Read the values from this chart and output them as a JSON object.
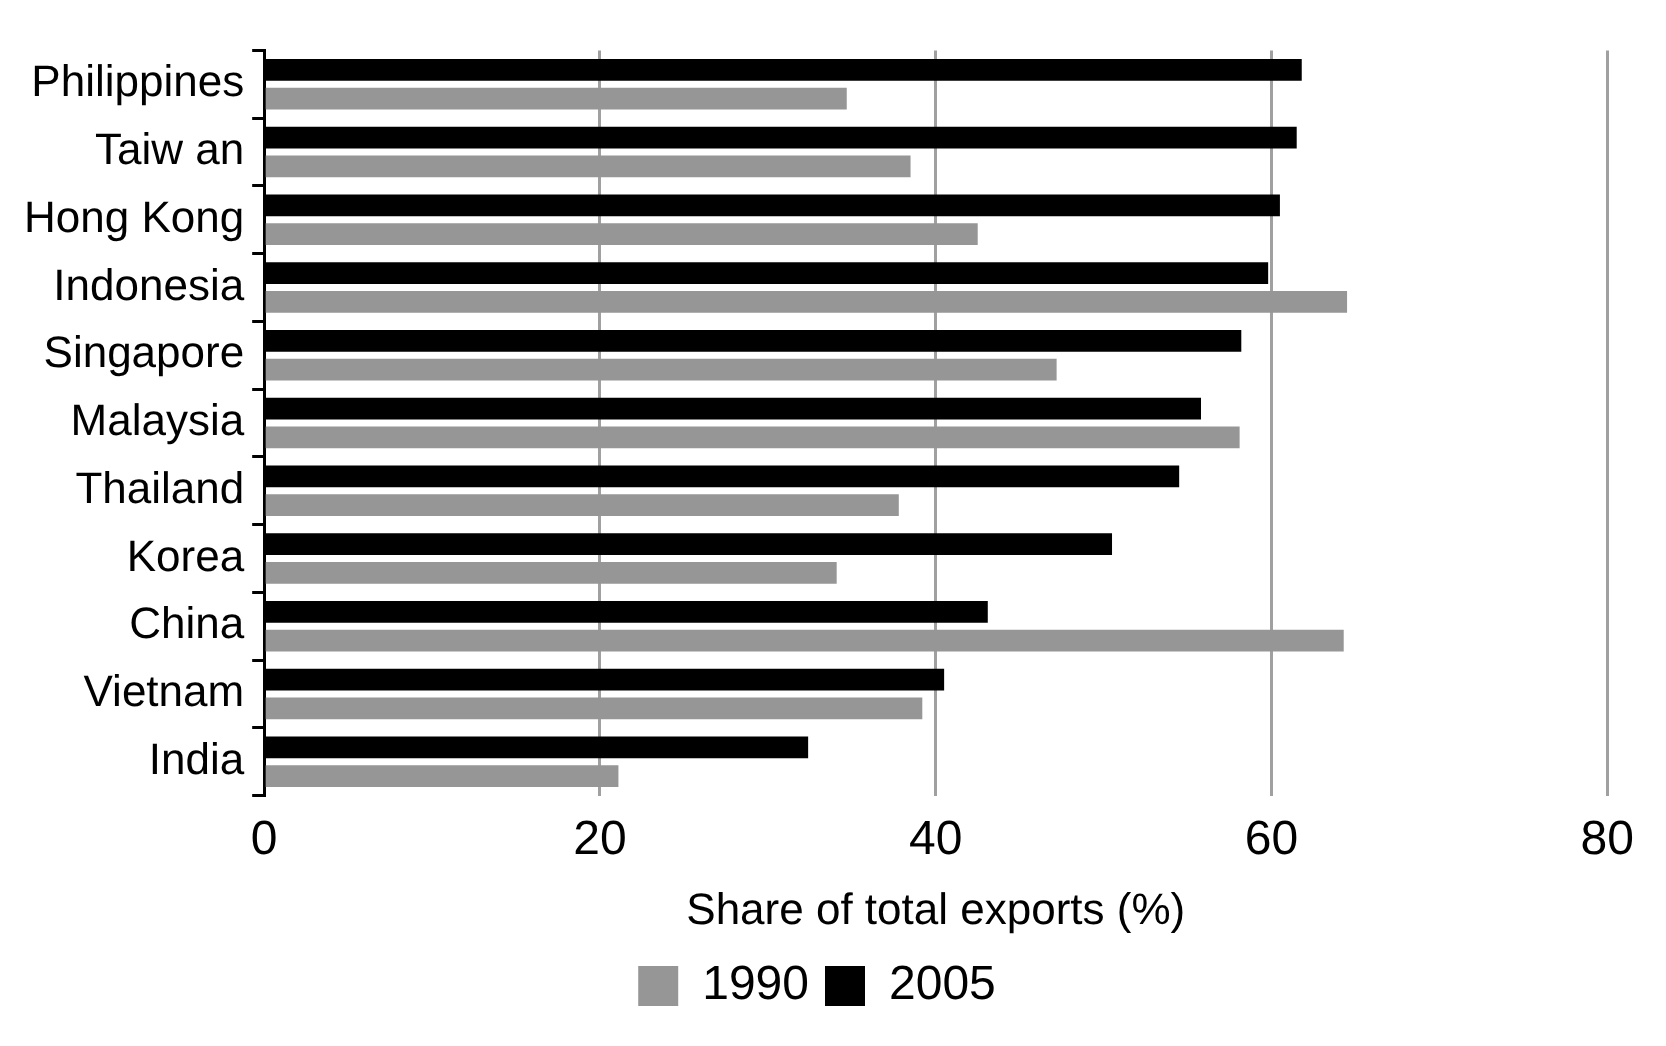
{
  "chart_data": {
    "type": "bar",
    "orientation": "horizontal",
    "xlabel": "Share of total exports (%)",
    "categories": [
      "Philippines",
      "Taiw an",
      "Hong Kong",
      "Indonesia",
      "Singapore",
      "Malaysia",
      "Thailand",
      "Korea",
      "China",
      "Vietnam",
      "India"
    ],
    "series": [
      {
        "name": "1990",
        "color": "#969696",
        "values": [
          34.7,
          38.5,
          42.5,
          64.5,
          47.2,
          58.1,
          37.8,
          34.1,
          64.3,
          39.2,
          21.1
        ]
      },
      {
        "name": "2005",
        "color": "#000000",
        "values": [
          61.8,
          61.5,
          60.5,
          59.8,
          58.2,
          55.8,
          54.5,
          50.5,
          43.1,
          40.5,
          32.4
        ]
      }
    ],
    "xlim": [
      0,
      80
    ],
    "xticks": [
      0,
      20,
      40,
      60,
      80
    ],
    "grid": "x",
    "legend": "bottom"
  }
}
